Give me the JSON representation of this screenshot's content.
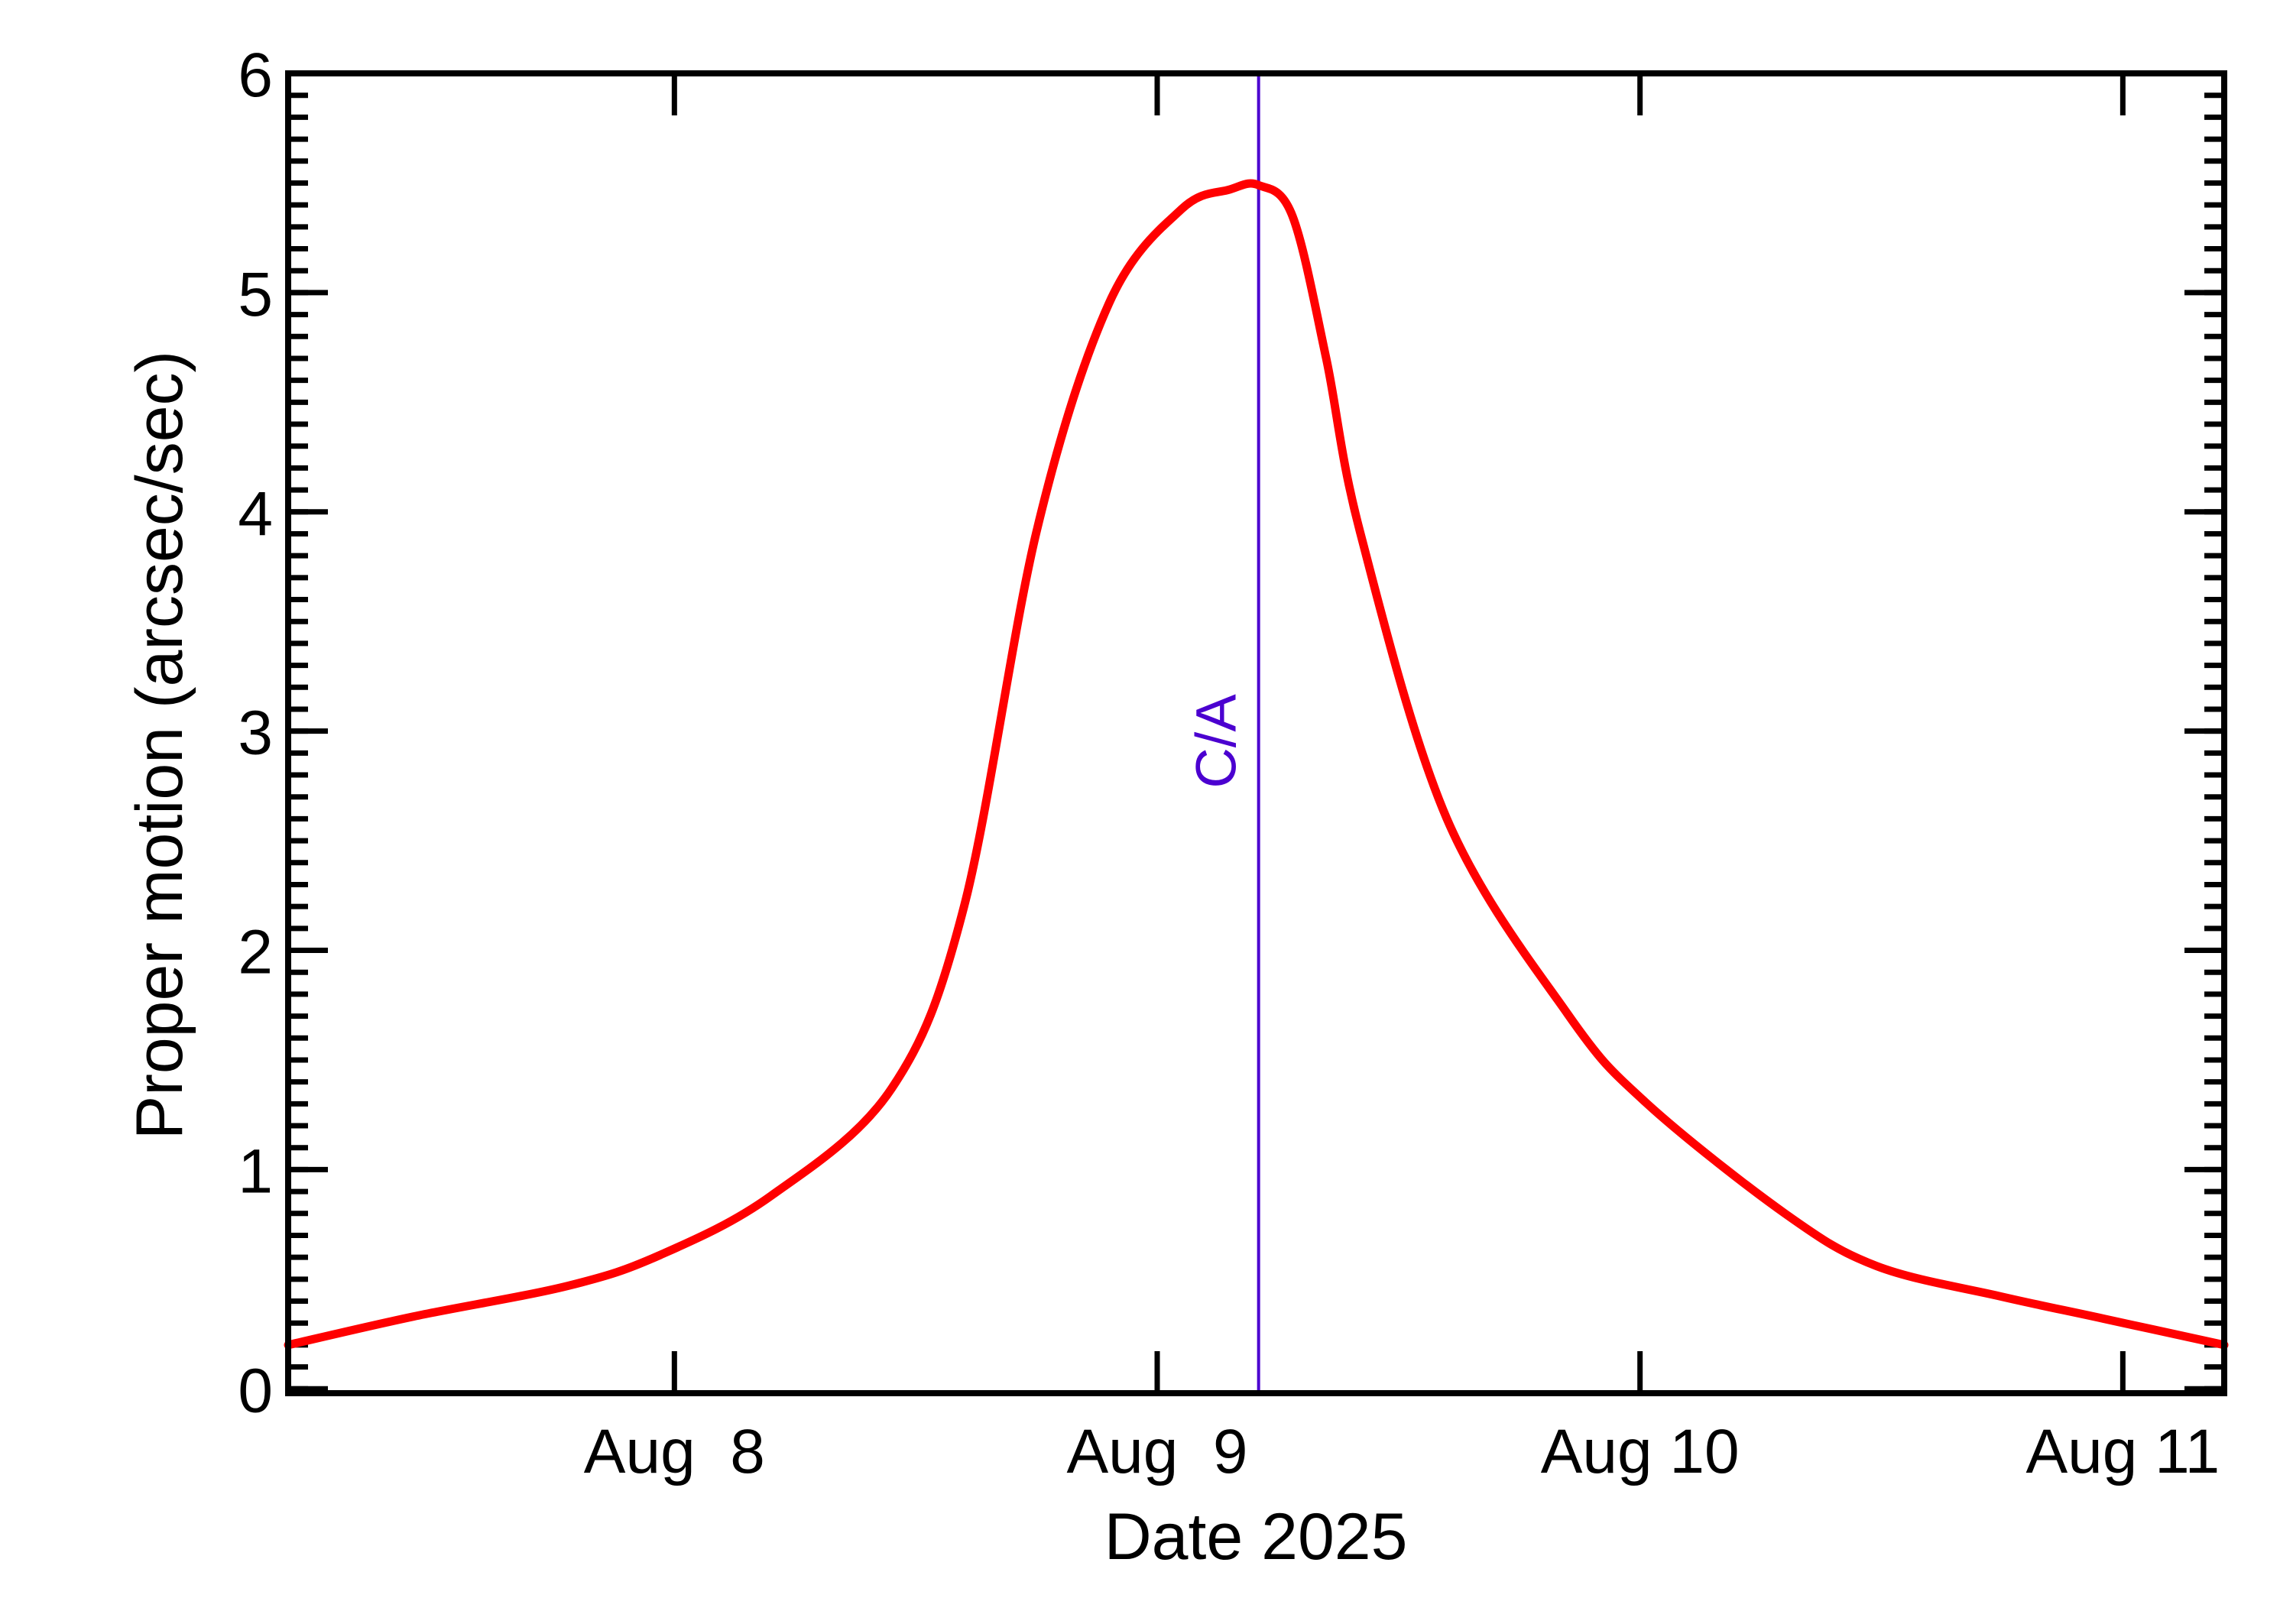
{
  "chart_data": {
    "type": "line",
    "title": "",
    "xlabel": "Date 2025",
    "ylabel": "Proper motion (arcsec/sec)",
    "xlim": [
      7.2,
      11.21
    ],
    "ylim": [
      -0.02,
      6.0
    ],
    "x_unit": "day of August 2025",
    "x_ticks": [
      {
        "value": 8,
        "label": "Aug  8"
      },
      {
        "value": 9,
        "label": "Aug  9"
      },
      {
        "value": 10,
        "label": "Aug 10"
      },
      {
        "value": 11,
        "label": "Aug 11"
      }
    ],
    "y_ticks": [
      {
        "value": 0,
        "label": "0"
      },
      {
        "value": 1,
        "label": "1"
      },
      {
        "value": 2,
        "label": "2"
      },
      {
        "value": 3,
        "label": "3"
      },
      {
        "value": 4,
        "label": "4"
      },
      {
        "value": 5,
        "label": "5"
      },
      {
        "value": 6,
        "label": "6"
      }
    ],
    "y_minor_step": 0.1,
    "grid": false,
    "legend": null,
    "series": [
      {
        "name": "Proper motion",
        "color": "#ff0000",
        "x": [
          7.2,
          7.46,
          7.78,
          7.97,
          8.2,
          8.45,
          8.6,
          8.75,
          8.9,
          9.05,
          9.15,
          9.21,
          9.28,
          9.35,
          9.42,
          9.6,
          9.85,
          10.01,
          10.3,
          10.49,
          10.75,
          10.96,
          11.21
        ],
        "values": [
          0.2,
          0.33,
          0.47,
          0.61,
          0.88,
          1.37,
          2.2,
          3.91,
          4.95,
          5.38,
          5.47,
          5.49,
          5.35,
          4.7,
          3.91,
          2.6,
          1.71,
          1.31,
          0.8,
          0.56,
          0.42,
          0.32,
          0.2
        ]
      }
    ],
    "annotations": [
      {
        "type": "vline",
        "x": 9.21,
        "label": "C/A",
        "color": "#4b00d0"
      }
    ]
  },
  "colors": {
    "curve": "#ff0000",
    "ca_line": "#4b00d0",
    "axes": "#000000",
    "background": "#ffffff"
  }
}
